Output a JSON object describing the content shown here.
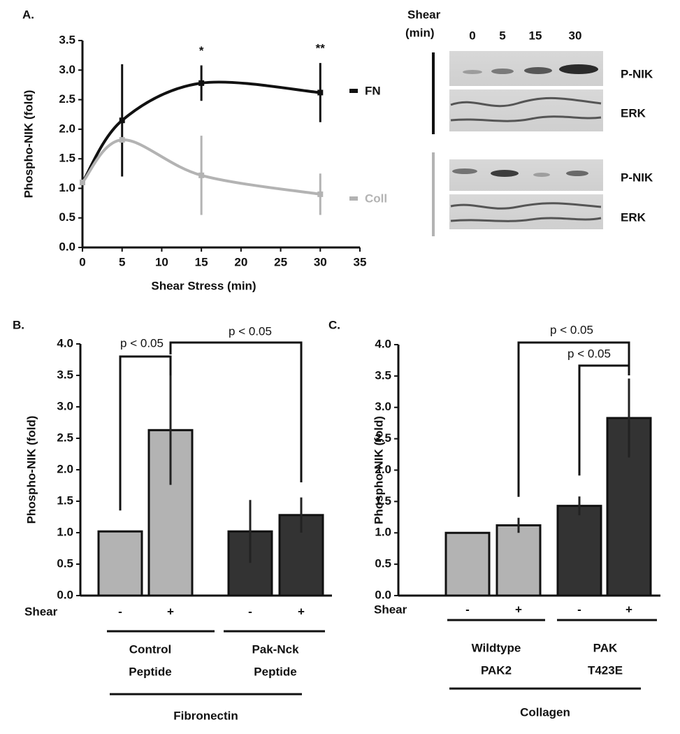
{
  "chart_data": [
    {
      "type": "line",
      "panel": "A.",
      "xlabel": "Shear Stress (min)",
      "ylabel": "Phospho-NIK (fold)",
      "x": [
        0,
        5,
        15,
        30
      ],
      "series": [
        {
          "name": "FN",
          "color": "#111111",
          "values": [
            1.1,
            2.15,
            2.78,
            2.62
          ],
          "errors": [
            null,
            0.95,
            0.3,
            0.5
          ]
        },
        {
          "name": "Coll",
          "color": "#b3b3b3",
          "values": [
            1.1,
            1.82,
            1.22,
            0.9
          ],
          "errors": [
            null,
            null,
            0.67,
            0.35
          ]
        }
      ],
      "annotations": [
        "*",
        "**"
      ],
      "xlim": [
        0,
        35
      ],
      "xticks": [
        0,
        5,
        10,
        15,
        20,
        25,
        30,
        35
      ],
      "ylim": [
        0,
        3.5
      ],
      "yticks": [
        {
          "value": 0,
          "label": "0.0"
        },
        0.5,
        {
          "value": 1,
          "label": "1.0"
        },
        1.5,
        {
          "value": 2,
          "label": "2.0"
        },
        2.5,
        {
          "value": 3,
          "label": "3.0"
        },
        3.5
      ]
    },
    {
      "type": "bar",
      "panel": "B.",
      "ylabel": "Phospho-NIK  (fold)",
      "row_label": "Shear",
      "categories": [
        "-",
        "+",
        "-",
        "+"
      ],
      "values": [
        1.02,
        2.63,
        1.02,
        1.28
      ],
      "errors": [
        null,
        0.87,
        0.5,
        0.28
      ],
      "colors": [
        "#b3b3b3",
        "#b3b3b3",
        "#333333",
        "#333333"
      ],
      "groups": [
        [
          "Control",
          "Peptide"
        ],
        [
          "Pak-Nck",
          "Peptide"
        ]
      ],
      "supergroup": "Fibronectin",
      "annotations": [
        "p < 0.05",
        "p < 0.05"
      ],
      "ylim": [
        0,
        4
      ],
      "yticks": [
        {
          "value": 0,
          "label": "0.0"
        },
        0.5,
        {
          "value": 1,
          "label": "1.0"
        },
        1.5,
        {
          "value": 2,
          "label": "2.0"
        },
        2.5,
        {
          "value": 3,
          "label": "3.0"
        },
        3.5,
        {
          "value": 4,
          "label": "4.0"
        }
      ]
    },
    {
      "type": "bar",
      "panel": "C.",
      "ylabel": "Phospho-NIK  (fold)",
      "row_label": "Shear",
      "categories": [
        "-",
        "+",
        "-",
        "+"
      ],
      "values": [
        1.0,
        1.12,
        1.43,
        2.83
      ],
      "errors": [
        null,
        0.12,
        0.15,
        0.63
      ],
      "colors": [
        "#b3b3b3",
        "#b3b3b3",
        "#333333",
        "#333333"
      ],
      "groups": [
        [
          "Wildtype",
          "PAK2"
        ],
        [
          "PAK",
          "T423E"
        ]
      ],
      "supergroup": "Collagen",
      "annotations": [
        "p < 0.05",
        "p < 0.05"
      ],
      "ylim": [
        0,
        4
      ],
      "yticks": [
        {
          "value": 0,
          "label": "0.0"
        },
        0.5,
        {
          "value": 1,
          "label": "1.0"
        },
        1.5,
        {
          "value": 2,
          "label": "2.0"
        },
        2.5,
        {
          "value": 3,
          "label": "3.0"
        },
        3.5,
        {
          "value": 4,
          "label": "4.0"
        }
      ]
    }
  ],
  "blot": {
    "header": [
      "Shear",
      "(min)"
    ],
    "lanes": [
      "0",
      "5",
      "15",
      "30"
    ],
    "labels": [
      "P-NIK",
      "ERK",
      "P-NIK",
      "ERK"
    ]
  }
}
